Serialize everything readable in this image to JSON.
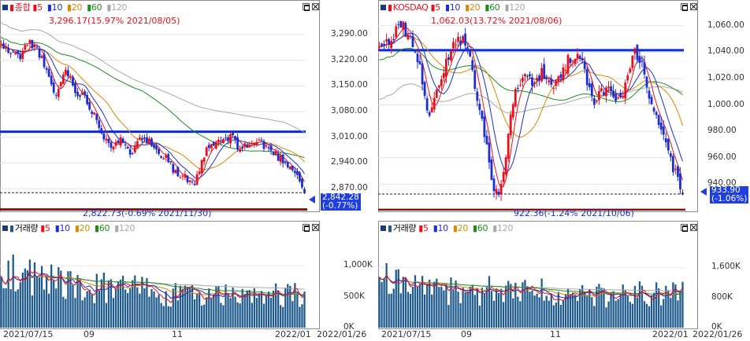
{
  "left": {
    "header": {
      "name": "종합",
      "ma5": "5",
      "ma10": "10",
      "ma20": "20",
      "ma60": "60",
      "ma120": "120"
    },
    "price_axis": [
      "3,290.00",
      "3,220.00",
      "3,150.00",
      "3,080.00",
      "3,010.00",
      "2,940.00",
      "2,870.00"
    ],
    "price_range": [
      2810,
      3350
    ],
    "current": {
      "value": "2,842.28",
      "change": "(-0.77%)"
    },
    "high_note": "3,296.17(15.97% 2021/08/05)",
    "low_note": "2,822.73(-0.69% 2021/11/30)",
    "hline_blue": 3025,
    "hline_red": 2813,
    "vol_header": {
      "name": "거래량",
      "ma5": "5",
      "ma10": "10",
      "ma20": "20",
      "ma60": "60",
      "ma120": "120"
    },
    "vol_axis": [
      "1,000K",
      "500K",
      "0K"
    ],
    "dates": [
      "2021/07/15",
      "09",
      "11",
      "2022/01",
      "2022/01/26"
    ]
  },
  "right": {
    "header": {
      "name": "KOSDAQ",
      "ma5": "5",
      "ma10": "10",
      "ma20": "20",
      "ma60": "60",
      "ma120": "120"
    },
    "price_axis": [
      "1,060.00",
      "1,040.00",
      "1,020.00",
      "1,000.00",
      "980.00",
      "960.00",
      "940.00"
    ],
    "price_range": [
      920,
      1070
    ],
    "current": {
      "value": "933.90",
      "change": "(-1.06%)"
    },
    "high_note": "1,062.03(13.72% 2021/08/06)",
    "low_note": "922.36(-1.24% 2021/10/06)",
    "hline_blue": 1041.5,
    "hline_red": 920.5,
    "vol_header": {
      "name": "거래량",
      "ma5": "5",
      "ma10": "10",
      "ma20": "20",
      "ma60": "60",
      "ma120": "120"
    },
    "vol_axis": [
      "1,600K",
      "800K",
      "0K"
    ],
    "dates": [
      "2021/07/15",
      "09",
      "11",
      "2022/01",
      "2022/01/26"
    ]
  },
  "colors": {
    "up": "#e8101c",
    "down": "#1c2ed0",
    "ma5": "#e8101c",
    "ma10": "#1c2ed0",
    "ma20": "#d88a00",
    "ma60": "#208a20",
    "ma120": "#a8a8a8",
    "volume": "#1e5a8c",
    "hline_blue": "#0a2bdc",
    "hline_red": "#8a0b0b"
  }
}
